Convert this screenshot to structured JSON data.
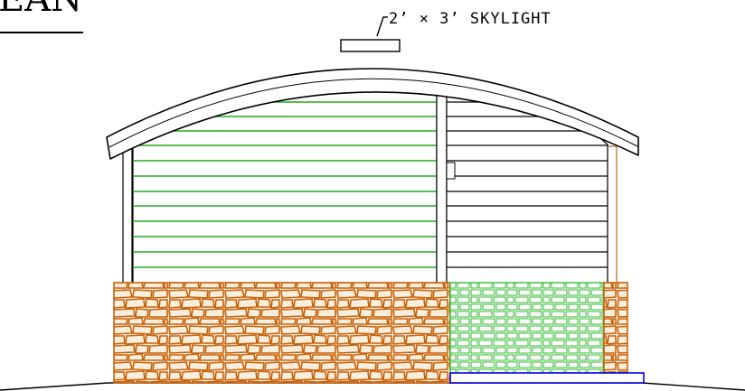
{
  "drawing": {
    "title_fragment": "EAN",
    "annotation": "2’ × 3’ SKYLIGHT"
  },
  "colors": {
    "line": "#000000",
    "siding_green": "#22aa22",
    "stone_orange": "#c8620a",
    "stone_fill": "#fbeedd",
    "tile_green": "#33bb33",
    "trim_brown": "#b06a1c",
    "step_blue": "#0000dd",
    "background": "#ffffff"
  },
  "icons": [
    "skylight-icon",
    "leader-line-icon"
  ]
}
